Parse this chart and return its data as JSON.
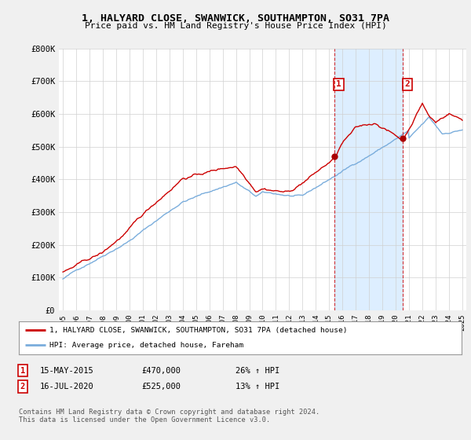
{
  "title_line1": "1, HALYARD CLOSE, SWANWICK, SOUTHAMPTON, SO31 7PA",
  "title_line2": "Price paid vs. HM Land Registry's House Price Index (HPI)",
  "background_color": "#f0f0f0",
  "plot_bg_color": "#ffffff",
  "red_label": "1, HALYARD CLOSE, SWANWICK, SOUTHAMPTON, SO31 7PA (detached house)",
  "blue_label": "HPI: Average price, detached house, Fareham",
  "annotation1": {
    "label": "1",
    "date": "15-MAY-2015",
    "price": "£470,000",
    "hpi": "26% ↑ HPI",
    "x": 2015.37
  },
  "annotation2": {
    "label": "2",
    "date": "16-JUL-2020",
    "price": "£525,000",
    "hpi": "13% ↑ HPI",
    "x": 2020.54
  },
  "footer": "Contains HM Land Registry data © Crown copyright and database right 2024.\nThis data is licensed under the Open Government Licence v3.0.",
  "ylim": [
    0,
    800000
  ],
  "yticks": [
    0,
    100000,
    200000,
    300000,
    400000,
    500000,
    600000,
    700000,
    800000
  ],
  "ytick_labels": [
    "£0",
    "£100K",
    "£200K",
    "£300K",
    "£400K",
    "£500K",
    "£600K",
    "£700K",
    "£800K"
  ],
  "red_color": "#cc0000",
  "blue_color": "#7aaddc",
  "shade_color": "#ddeeff",
  "marker_color": "#aa0000",
  "point1_x": 2015.37,
  "point1_y": 470000,
  "point2_x": 2020.54,
  "point2_y": 525000,
  "xlim_left": 1994.7,
  "xlim_right": 2025.3
}
